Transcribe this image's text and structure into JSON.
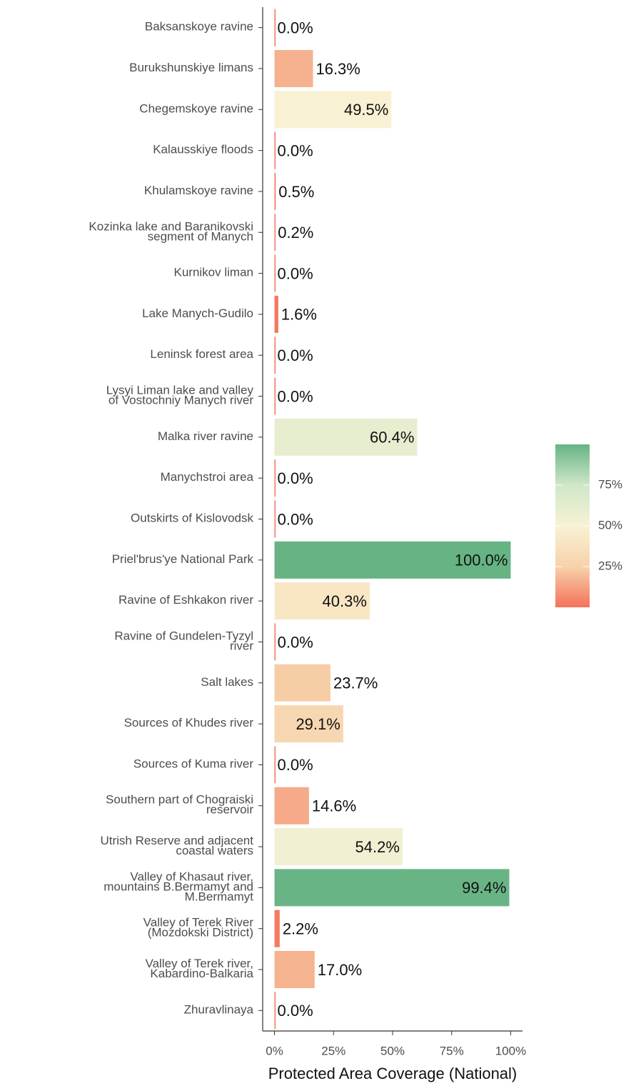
{
  "chart_data": {
    "type": "bar",
    "orientation": "horizontal",
    "x_label": "Protected Area Coverage (National)",
    "categories": [
      "Baksanskoye ravine",
      "Burukshunskiye limans",
      "Chegemskoye ravine",
      "Kalausskiye floods",
      "Khulamskoye ravine",
      "Kozinka lake and Baranikovski\nsegment of Manych",
      "Kurnikov liman",
      "Lake Manych-Gudilo",
      "Leninsk forest area",
      "Lysyi Liman lake and valley\nof Vostochniy Manych river",
      "Malka river ravine",
      "Manychstroi area",
      "Outskirts of Kislovodsk",
      "Priel'brus'ye National Park",
      "Ravine of Eshkakon river",
      "Ravine of Gundelen-Tyzyl\nriver",
      "Salt lakes",
      "Sources of Khudes river",
      "Sources of Kuma river",
      "Southern part of Chograiski\nreservoir",
      "Utrish Reserve and adjacent\ncoastal waters",
      "Valley of Khasaut river,\nmountains B.Bermamyt and\nM.Bermamyt",
      "Valley of Terek River\n(Mozdokski District)",
      "Valley of Terek river,\nKabardino-Balkaria",
      "Zhuravlinaya"
    ],
    "values": [
      0,
      16.3,
      49.5,
      0,
      0.5,
      0.2,
      0,
      1.6,
      0,
      0,
      60.4,
      0,
      0.04,
      100,
      40.3,
      0.04,
      23.7,
      29.1,
      0,
      14.6,
      54.2,
      99.4,
      2.2,
      17.0,
      0
    ],
    "value_labels": [
      "0.0%",
      "16.3%",
      "49.5%",
      "0.0%",
      "0.5%",
      "0.2%",
      "0.0%",
      "1.6%",
      "0.0%",
      "0.0%",
      "60.4%",
      "0.0%",
      "0.0%",
      "100.0%",
      "40.3%",
      "0.0%",
      "23.7%",
      "29.1%",
      "0.0%",
      "14.6%",
      "54.2%",
      "99.4%",
      "2.2%",
      "17.0%",
      "0.0%"
    ],
    "xlim": [
      -5,
      105
    ],
    "xticks": [
      {
        "value": 0,
        "label": "0%"
      },
      {
        "value": 25,
        "label": "25%"
      },
      {
        "value": 50,
        "label": "50%"
      },
      {
        "value": 75,
        "label": "75%"
      },
      {
        "value": 100,
        "label": "100%"
      }
    ],
    "color_scale": {
      "lim": [
        0,
        100
      ],
      "stops": [
        "#f4725a",
        "#f7d2aa",
        "#f8f2d4",
        "#cfe7c8",
        "#66b383"
      ],
      "ticks": [
        {
          "value": 25,
          "label": "25%"
        },
        {
          "value": 50,
          "label": "50%"
        },
        {
          "value": 75,
          "label": "75%"
        }
      ]
    }
  }
}
